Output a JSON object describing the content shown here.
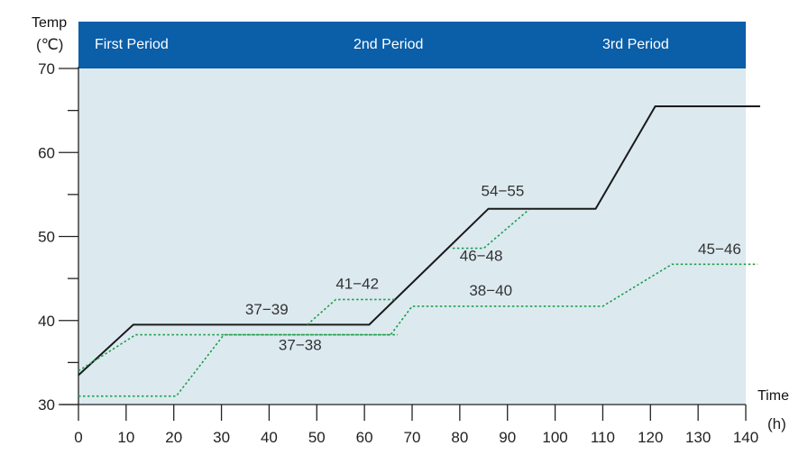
{
  "chart_data": {
    "type": "line",
    "y_title": "Temp",
    "y_unit": "(℃)",
    "x_title": "Time",
    "x_unit": "(h)",
    "xlim": [
      0,
      140
    ],
    "ylim": [
      30,
      70
    ],
    "x_ticks": [
      0,
      10,
      20,
      30,
      40,
      50,
      60,
      70,
      80,
      90,
      100,
      110,
      120,
      130,
      140
    ],
    "y_ticks": [
      30,
      40,
      50,
      60,
      70
    ],
    "periods": [
      {
        "label": "First Period",
        "x": 0
      },
      {
        "label": "2nd Period",
        "x": 60
      },
      {
        "label": "3rd Period",
        "x": 115
      }
    ],
    "series": [
      {
        "style": "solid",
        "color": "#1a1a1a",
        "points": [
          [
            0,
            33.5
          ],
          [
            11.5,
            39.5
          ],
          [
            61,
            39.5
          ],
          [
            86,
            53.3
          ],
          [
            108.5,
            53.3
          ],
          [
            121,
            65.5
          ],
          [
            143,
            65.5
          ]
        ]
      },
      {
        "style": "dotted",
        "color": "#1e9e4a",
        "points": [
          [
            0,
            34
          ],
          [
            12,
            38.3
          ],
          [
            64,
            38.3
          ],
          [
            67,
            38.3
          ]
        ]
      },
      {
        "style": "dotted",
        "color": "#1e9e4a",
        "points": [
          [
            0,
            31
          ],
          [
            20.5,
            31
          ],
          [
            30.5,
            38.3
          ],
          [
            65.5,
            38.3
          ],
          [
            70,
            41.7
          ],
          [
            110,
            41.7
          ],
          [
            124.5,
            46.7
          ],
          [
            142.5,
            46.7
          ]
        ]
      },
      {
        "style": "dotted",
        "color": "#1e9e4a",
        "points": [
          [
            48,
            39.5
          ],
          [
            54,
            42.5
          ],
          [
            66.5,
            42.5
          ]
        ]
      },
      {
        "style": "dotted",
        "color": "#1e9e4a",
        "points": [
          [
            78.5,
            48.6
          ],
          [
            85,
            48.6
          ],
          [
            94.5,
            53.2
          ]
        ]
      }
    ],
    "annotations": [
      {
        "text": "37−39",
        "x": 39.5,
        "y": 40.7
      },
      {
        "text": "37−38",
        "x": 46.5,
        "y": 36.5
      },
      {
        "text": "41−42",
        "x": 58.5,
        "y": 43.8
      },
      {
        "text": "54−55",
        "x": 89,
        "y": 54.8
      },
      {
        "text": "46−48",
        "x": 84.5,
        "y": 47.1
      },
      {
        "text": "38−40",
        "x": 86.5,
        "y": 43.0
      },
      {
        "text": "45−46",
        "x": 134.5,
        "y": 47.9
      }
    ],
    "colors": {
      "plot_background": "#dceaf0",
      "header_band": "#0b5ea8",
      "axis": "#222222",
      "solid_line": "#1a1a1a",
      "dotted_line": "#1e9e4a"
    }
  }
}
